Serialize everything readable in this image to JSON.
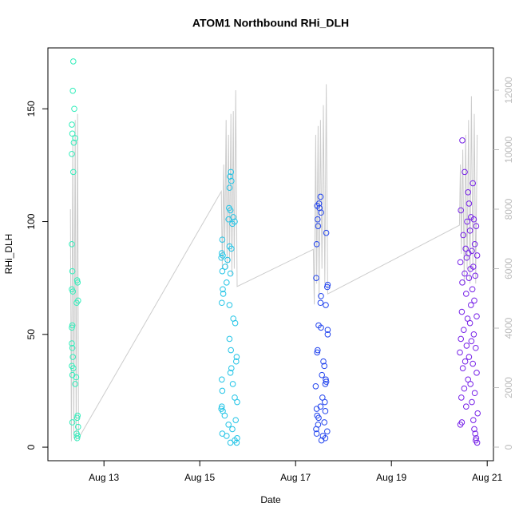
{
  "chart_data": {
    "type": "scatter",
    "title": "ATOM1 Northbound RHi_DLH",
    "x_label": "Date",
    "y_label": "RHi_DLH",
    "xlim": [
      11.83,
      21.13
    ],
    "xticks": [
      {
        "value": 13,
        "label": "Aug 13"
      },
      {
        "value": 15,
        "label": "Aug 15"
      },
      {
        "value": 17,
        "label": "Aug 17"
      },
      {
        "value": 19,
        "label": "Aug 19"
      },
      {
        "value": 21,
        "label": "Aug 21"
      }
    ],
    "ylim": [
      -6,
      177
    ],
    "yticks": [
      0,
      50,
      100,
      150
    ],
    "y2lim": [
      -456,
      13423
    ],
    "y2ticks": [
      0,
      2000,
      4000,
      6000,
      8000,
      10000,
      12000
    ],
    "y2_color": "#bbbbbb",
    "series": [
      {
        "color": "#33eebb",
        "x": [
          12.36,
          12.35,
          12.38,
          12.33,
          12.34,
          12.4,
          12.37,
          12.33,
          12.36,
          12.33,
          12.34,
          12.44,
          12.45,
          12.33,
          12.35,
          12.46,
          12.43,
          12.34,
          12.33,
          12.33,
          12.34,
          12.35,
          12.33,
          12.36,
          12.34,
          12.42,
          12.4,
          12.45,
          12.44,
          12.34,
          12.46,
          12.43,
          12.45,
          12.44
        ],
        "values": [
          171,
          158,
          150,
          143,
          139,
          137,
          135,
          130,
          122,
          90,
          78,
          74,
          73,
          70,
          69,
          65,
          64,
          54,
          53,
          46,
          44,
          40,
          36,
          35,
          32,
          31,
          28,
          14,
          13,
          11,
          9,
          6,
          5,
          4
        ]
      },
      {
        "color": "#22c4e6",
        "x": [
          15.65,
          15.63,
          15.66,
          15.62,
          15.61,
          15.64,
          15.7,
          15.6,
          15.73,
          15.68,
          15.47,
          15.62,
          15.66,
          15.46,
          15.48,
          15.45,
          15.58,
          15.53,
          15.47,
          15.64,
          15.56,
          15.48,
          15.49,
          15.46,
          15.62,
          15.7,
          15.74,
          15.62,
          15.65,
          15.77,
          15.76,
          15.66,
          15.64,
          15.46,
          15.69,
          15.47,
          15.73,
          15.78,
          15.46,
          15.45,
          15.48,
          15.52,
          15.75,
          15.6,
          15.68,
          15.47,
          15.56,
          15.78,
          15.73,
          15.77,
          15.64
        ],
        "values": [
          122,
          120,
          118,
          115,
          106,
          105,
          102,
          101,
          100,
          99,
          92,
          89,
          88,
          86,
          85,
          84,
          83,
          80,
          78,
          77,
          73,
          70,
          68,
          64,
          63,
          57,
          55,
          48,
          43,
          40,
          38,
          35,
          33,
          30,
          28,
          25,
          22,
          20,
          18,
          17,
          16,
          14,
          12,
          10,
          8,
          6,
          5,
          4,
          3,
          2,
          2
        ]
      },
      {
        "color": "#2244ee",
        "x": [
          17.52,
          17.49,
          17.45,
          17.5,
          17.53,
          17.46,
          17.47,
          17.64,
          17.44,
          17.43,
          17.67,
          17.66,
          17.53,
          17.52,
          17.63,
          17.48,
          17.53,
          17.67,
          17.67,
          17.46,
          17.45,
          17.58,
          17.6,
          17.55,
          17.63,
          17.64,
          17.62,
          17.42,
          17.56,
          17.61,
          17.52,
          17.44,
          17.62,
          17.45,
          17.48,
          17.6,
          17.47,
          17.43,
          17.66,
          17.44,
          17.57,
          17.62,
          17.54
        ],
        "values": [
          111,
          108,
          107,
          106,
          104,
          101,
          98,
          95,
          90,
          75,
          72,
          71,
          67,
          64,
          63,
          54,
          53,
          52,
          50,
          43,
          42,
          38,
          36,
          32,
          30,
          29,
          28,
          27,
          22,
          20,
          18,
          17,
          16,
          14,
          13,
          11,
          10,
          8,
          7,
          6,
          5,
          4,
          3
        ]
      },
      {
        "color": "#7722e8",
        "x": [
          20.48,
          20.53,
          20.7,
          20.6,
          20.62,
          20.45,
          20.66,
          20.72,
          20.58,
          20.77,
          20.64,
          20.5,
          20.74,
          20.55,
          20.68,
          20.61,
          20.79,
          20.57,
          20.44,
          20.71,
          20.65,
          20.53,
          20.75,
          20.62,
          20.48,
          20.69,
          20.56,
          20.73,
          20.66,
          20.47,
          20.78,
          20.59,
          20.64,
          20.51,
          20.72,
          20.45,
          20.67,
          20.57,
          20.76,
          20.43,
          20.62,
          20.54,
          20.7,
          20.49,
          20.78,
          20.6,
          20.65,
          20.52,
          20.74,
          20.46,
          20.68,
          20.56,
          20.8,
          20.71,
          20.47,
          20.44,
          20.73,
          20.75,
          20.77,
          20.76,
          20.79
        ],
        "values": [
          136,
          122,
          117,
          113,
          108,
          105,
          102,
          101,
          100,
          98,
          96,
          94,
          90,
          88,
          87,
          86,
          85,
          84,
          82,
          80,
          79,
          77,
          76,
          75,
          73,
          70,
          68,
          65,
          63,
          60,
          58,
          57,
          55,
          52,
          50,
          48,
          47,
          45,
          44,
          42,
          40,
          38,
          37,
          35,
          33,
          30,
          28,
          26,
          24,
          22,
          20,
          18,
          15,
          12,
          11,
          10,
          8,
          6,
          4,
          3,
          2
        ]
      },
      {
        "color": "#cccccc",
        "axis": "y2",
        "line": true,
        "x": [
          12.3,
          12.32,
          12.35,
          12.37,
          12.4,
          12.42,
          12.45,
          12.47,
          15.45,
          15.47,
          15.5,
          15.52,
          15.55,
          15.57,
          15.6,
          15.62,
          15.65,
          15.67,
          15.7,
          15.72,
          15.75,
          15.78,
          17.37,
          17.39,
          17.42,
          17.44,
          17.47,
          17.49,
          17.52,
          17.55,
          17.58,
          17.61,
          17.64,
          17.67,
          20.42,
          20.44,
          20.46,
          20.49,
          20.52,
          20.55,
          20.58,
          20.61,
          20.64,
          20.67,
          20.7,
          20.73,
          20.76,
          20.79
        ],
        "values": [
          8000,
          200,
          10500,
          300,
          11000,
          200,
          11200,
          300,
          8600,
          6000,
          9500,
          6500,
          11000,
          6000,
          10500,
          6200,
          11200,
          5800,
          11300,
          6000,
          12000,
          5400,
          6650,
          4800,
          10500,
          5500,
          10800,
          5000,
          11000,
          6000,
          11500,
          5500,
          12200,
          5150,
          7460,
          9500,
          6500,
          10000,
          5500,
          10500,
          6000,
          11000,
          5500,
          11800,
          6000,
          11200,
          5500,
          10500
        ]
      }
    ]
  }
}
